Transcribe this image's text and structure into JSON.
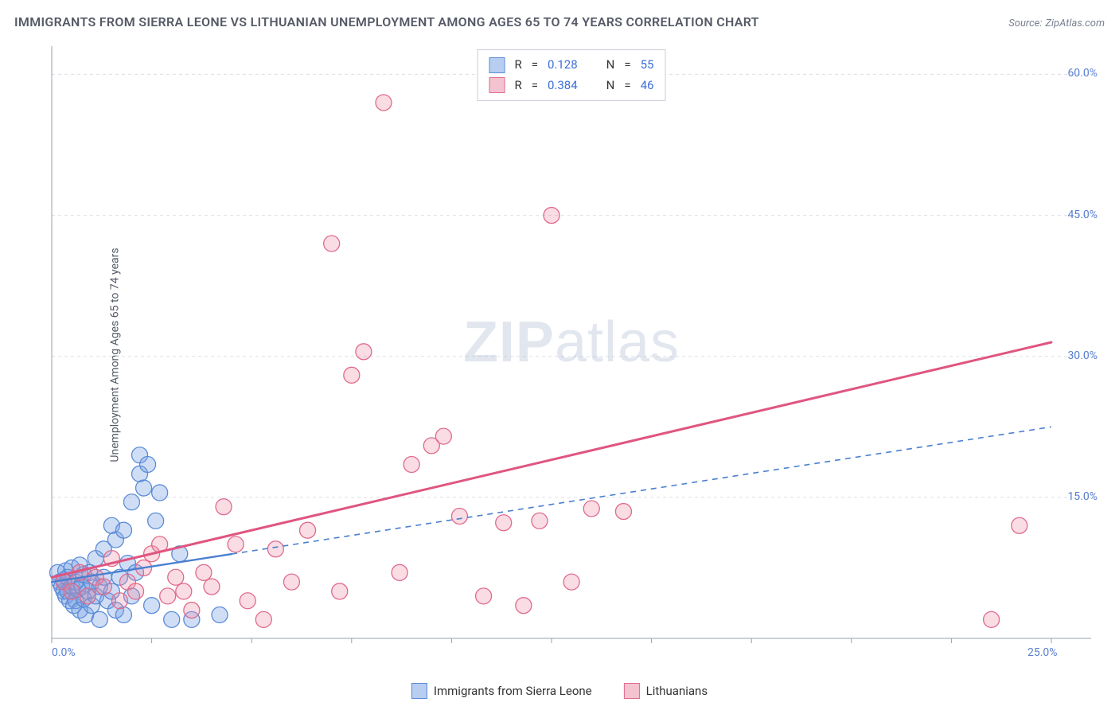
{
  "title": "IMMIGRANTS FROM SIERRA LEONE VS LITHUANIAN UNEMPLOYMENT AMONG AGES 65 TO 74 YEARS CORRELATION CHART",
  "source_label": "Source:",
  "source_name": "ZipAtlas.com",
  "y_axis_label": "Unemployment Among Ages 65 to 74 years",
  "watermark": "ZIPatlas",
  "chart": {
    "type": "scatter",
    "xlim": [
      0,
      25
    ],
    "ylim": [
      0,
      63
    ],
    "x_ticks": [
      0,
      25
    ],
    "y_grid": [
      15,
      30,
      45,
      60
    ],
    "x_tick_labels": [
      "0.0%",
      "25.0%"
    ],
    "y_grid_labels": [
      "15.0%",
      "30.0%",
      "45.0%",
      "60.0%"
    ],
    "grid_color": "#dcdfe5",
    "axis_color": "#9aa0ab",
    "tick_label_color": "#5a7fd0",
    "background_color": "#ffffff",
    "marker_radius": 10,
    "marker_stroke_width": 1.3,
    "series": [
      {
        "name": "Immigrants from Sierra Leone",
        "fill": "rgba(120,160,225,0.35)",
        "stroke": "#5a8bd8",
        "swatch_fill": "#b7cef0",
        "swatch_border": "#5a8bd8",
        "r_value": "0.128",
        "n_value": "55",
        "trend": {
          "x1": 0,
          "y1": 6.0,
          "x2": 25,
          "y2": 22.5,
          "solid_until_x": 4.5,
          "color": "#4a7fd0",
          "width": 2.3,
          "dash": "7 6"
        },
        "points": [
          [
            0.15,
            7.0
          ],
          [
            0.2,
            6.0
          ],
          [
            0.25,
            5.5
          ],
          [
            0.3,
            5.0
          ],
          [
            0.3,
            6.2
          ],
          [
            0.35,
            7.2
          ],
          [
            0.35,
            4.5
          ],
          [
            0.4,
            6.5
          ],
          [
            0.4,
            5.0
          ],
          [
            0.45,
            4.0
          ],
          [
            0.5,
            7.5
          ],
          [
            0.5,
            5.5
          ],
          [
            0.55,
            3.5
          ],
          [
            0.6,
            6.0
          ],
          [
            0.6,
            4.0
          ],
          [
            0.65,
            5.2
          ],
          [
            0.7,
            3.0
          ],
          [
            0.7,
            7.8
          ],
          [
            0.75,
            5.5
          ],
          [
            0.8,
            4.2
          ],
          [
            0.8,
            6.8
          ],
          [
            0.85,
            2.5
          ],
          [
            0.9,
            5.0
          ],
          [
            0.95,
            7.0
          ],
          [
            1.0,
            3.5
          ],
          [
            1.0,
            6.0
          ],
          [
            1.1,
            4.5
          ],
          [
            1.1,
            8.5
          ],
          [
            1.2,
            5.5
          ],
          [
            1.2,
            2.0
          ],
          [
            1.3,
            6.5
          ],
          [
            1.3,
            9.5
          ],
          [
            1.4,
            4.0
          ],
          [
            1.5,
            12.0
          ],
          [
            1.5,
            5.0
          ],
          [
            1.6,
            10.5
          ],
          [
            1.6,
            3.0
          ],
          [
            1.7,
            6.5
          ],
          [
            1.8,
            11.5
          ],
          [
            1.8,
            2.5
          ],
          [
            1.9,
            8.0
          ],
          [
            2.0,
            14.5
          ],
          [
            2.0,
            4.5
          ],
          [
            2.1,
            7.0
          ],
          [
            2.2,
            17.5
          ],
          [
            2.2,
            19.5
          ],
          [
            2.3,
            16.0
          ],
          [
            2.4,
            18.5
          ],
          [
            2.5,
            3.5
          ],
          [
            2.6,
            12.5
          ],
          [
            2.7,
            15.5
          ],
          [
            3.0,
            2.0
          ],
          [
            3.2,
            9.0
          ],
          [
            3.5,
            2.0
          ],
          [
            4.2,
            2.5
          ]
        ]
      },
      {
        "name": "Lithuanians",
        "fill": "rgba(235,140,165,0.30)",
        "stroke": "#e06a8c",
        "swatch_fill": "#f4c3d1",
        "swatch_border": "#e06a8c",
        "r_value": "0.384",
        "n_value": "46",
        "trend": {
          "x1": 0,
          "y1": 6.5,
          "x2": 25,
          "y2": 31.5,
          "solid_until_x": 25,
          "color": "#e05580",
          "width": 3.0,
          "dash": null
        },
        "points": [
          [
            0.3,
            6.0
          ],
          [
            0.5,
            5.0
          ],
          [
            0.7,
            7.0
          ],
          [
            0.9,
            4.5
          ],
          [
            1.1,
            6.5
          ],
          [
            1.3,
            5.5
          ],
          [
            1.5,
            8.5
          ],
          [
            1.7,
            4.0
          ],
          [
            1.9,
            6.0
          ],
          [
            2.1,
            5.0
          ],
          [
            2.3,
            7.5
          ],
          [
            2.5,
            9.0
          ],
          [
            2.7,
            10.0
          ],
          [
            2.9,
            4.5
          ],
          [
            3.1,
            6.5
          ],
          [
            3.3,
            5.0
          ],
          [
            3.5,
            3.0
          ],
          [
            3.8,
            7.0
          ],
          [
            4.0,
            5.5
          ],
          [
            4.3,
            14.0
          ],
          [
            4.6,
            10.0
          ],
          [
            4.9,
            4.0
          ],
          [
            5.3,
            2.0
          ],
          [
            5.6,
            9.5
          ],
          [
            6.0,
            6.0
          ],
          [
            6.4,
            11.5
          ],
          [
            7.0,
            42.0
          ],
          [
            7.2,
            5.0
          ],
          [
            7.5,
            28.0
          ],
          [
            7.8,
            30.5
          ],
          [
            8.3,
            57.0
          ],
          [
            8.7,
            7.0
          ],
          [
            9.0,
            18.5
          ],
          [
            9.5,
            20.5
          ],
          [
            9.8,
            21.5
          ],
          [
            10.2,
            13.0
          ],
          [
            10.8,
            4.5
          ],
          [
            11.3,
            12.3
          ],
          [
            11.8,
            3.5
          ],
          [
            12.2,
            12.5
          ],
          [
            12.5,
            45.0
          ],
          [
            13.0,
            6.0
          ],
          [
            13.5,
            13.8
          ],
          [
            14.3,
            13.5
          ],
          [
            23.5,
            2.0
          ],
          [
            24.2,
            12.0
          ]
        ]
      }
    ]
  },
  "bottom_legend": [
    {
      "label": "Immigrants from Sierra Leone",
      "series_idx": 0
    },
    {
      "label": "Lithuanians",
      "series_idx": 1
    }
  ],
  "legend_r_label": "R",
  "legend_n_label": "N",
  "legend_eq": "="
}
